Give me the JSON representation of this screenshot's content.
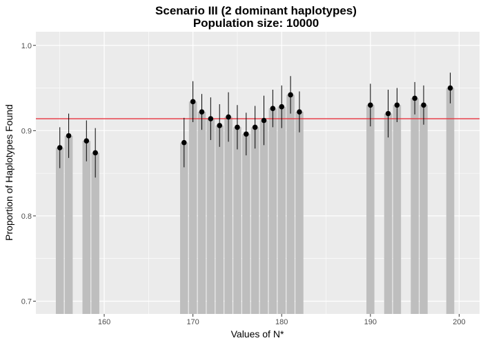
{
  "chart_data": {
    "type": "bar",
    "title": "Scenario III (2 dominant haplotypes)",
    "subtitle": "Population size: 10000",
    "xlabel": "Values of N*",
    "ylabel": "Proportion of Haplotypes Found",
    "xlim": [
      152.3,
      202.3
    ],
    "ylim": [
      0.685,
      1.016
    ],
    "x_ticks": [
      160,
      170,
      180,
      190,
      200
    ],
    "y_ticks": [
      0.7,
      0.8,
      0.9,
      1.0
    ],
    "x_tick_labels": [
      "160",
      "170",
      "180",
      "190",
      "200"
    ],
    "y_tick_labels": [
      "0.7",
      "0.8",
      "0.9",
      "1.0"
    ],
    "reference_line": 0.914,
    "colors": {
      "panel": "#ebebeb",
      "grid": "#ffffff",
      "bar": "#bebebe",
      "point": "#000000",
      "errorbar": "#000000",
      "reference": "#e8323c"
    },
    "grid": true,
    "points": [
      {
        "x": 155,
        "y": 0.88,
        "lo": 0.856,
        "hi": 0.904
      },
      {
        "x": 156,
        "y": 0.894,
        "lo": 0.868,
        "hi": 0.92
      },
      {
        "x": 158,
        "y": 0.888,
        "lo": 0.864,
        "hi": 0.912
      },
      {
        "x": 159,
        "y": 0.874,
        "lo": 0.845,
        "hi": 0.903
      },
      {
        "x": 169,
        "y": 0.886,
        "lo": 0.857,
        "hi": 0.915
      },
      {
        "x": 170,
        "y": 0.934,
        "lo": 0.91,
        "hi": 0.958
      },
      {
        "x": 171,
        "y": 0.922,
        "lo": 0.901,
        "hi": 0.943
      },
      {
        "x": 172,
        "y": 0.914,
        "lo": 0.889,
        "hi": 0.939
      },
      {
        "x": 173,
        "y": 0.906,
        "lo": 0.881,
        "hi": 0.931
      },
      {
        "x": 174,
        "y": 0.916,
        "lo": 0.887,
        "hi": 0.945
      },
      {
        "x": 175,
        "y": 0.904,
        "lo": 0.878,
        "hi": 0.93
      },
      {
        "x": 176,
        "y": 0.896,
        "lo": 0.871,
        "hi": 0.921
      },
      {
        "x": 177,
        "y": 0.904,
        "lo": 0.879,
        "hi": 0.929
      },
      {
        "x": 178,
        "y": 0.912,
        "lo": 0.883,
        "hi": 0.941
      },
      {
        "x": 179,
        "y": 0.926,
        "lo": 0.904,
        "hi": 0.948
      },
      {
        "x": 180,
        "y": 0.928,
        "lo": 0.903,
        "hi": 0.953
      },
      {
        "x": 181,
        "y": 0.942,
        "lo": 0.92,
        "hi": 0.964
      },
      {
        "x": 182,
        "y": 0.922,
        "lo": 0.898,
        "hi": 0.946
      },
      {
        "x": 190,
        "y": 0.93,
        "lo": 0.905,
        "hi": 0.955
      },
      {
        "x": 192,
        "y": 0.92,
        "lo": 0.892,
        "hi": 0.948
      },
      {
        "x": 193,
        "y": 0.93,
        "lo": 0.91,
        "hi": 0.95
      },
      {
        "x": 195,
        "y": 0.938,
        "lo": 0.919,
        "hi": 0.957
      },
      {
        "x": 196,
        "y": 0.93,
        "lo": 0.907,
        "hi": 0.953
      },
      {
        "x": 199,
        "y": 0.95,
        "lo": 0.932,
        "hi": 0.968
      }
    ]
  }
}
